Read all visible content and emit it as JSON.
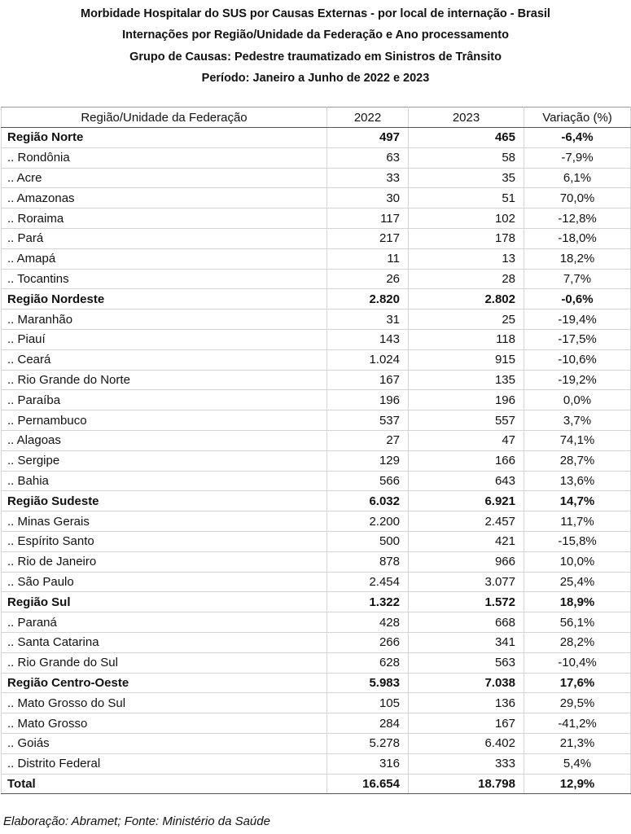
{
  "titles": [
    "Morbidade Hospitalar do SUS por Causas Externas - por local de internação - Brasil",
    "Internações por Região/Unidade da Federação e Ano processamento",
    "Grupo de Causas: Pedestre traumatizado em Sinistros de Trânsito",
    "Período: Janeiro a Junho de 2022 e 2023"
  ],
  "table": {
    "headers": [
      "Região/Unidade da Federação",
      "2022",
      "2023",
      "Variação (%)"
    ],
    "rows": [
      {
        "name": "Região Norte",
        "y2022": "497",
        "y2023": "465",
        "var": "-6,4%",
        "bold": true
      },
      {
        "name": ".. Rondônia",
        "y2022": "63",
        "y2023": "58",
        "var": "-7,9%"
      },
      {
        "name": ".. Acre",
        "y2022": "33",
        "y2023": "35",
        "var": "6,1%"
      },
      {
        "name": ".. Amazonas",
        "y2022": "30",
        "y2023": "51",
        "var": "70,0%"
      },
      {
        "name": ".. Roraima",
        "y2022": "117",
        "y2023": "102",
        "var": "-12,8%"
      },
      {
        "name": ".. Pará",
        "y2022": "217",
        "y2023": "178",
        "var": "-18,0%"
      },
      {
        "name": ".. Amapá",
        "y2022": "11",
        "y2023": "13",
        "var": "18,2%"
      },
      {
        "name": ".. Tocantins",
        "y2022": "26",
        "y2023": "28",
        "var": "7,7%"
      },
      {
        "name": "Região Nordeste",
        "y2022": "2.820",
        "y2023": "2.802",
        "var": "-0,6%",
        "bold": true
      },
      {
        "name": ".. Maranhão",
        "y2022": "31",
        "y2023": "25",
        "var": "-19,4%"
      },
      {
        "name": ".. Piauí",
        "y2022": "143",
        "y2023": "118",
        "var": "-17,5%"
      },
      {
        "name": ".. Ceará",
        "y2022": "1.024",
        "y2023": "915",
        "var": "-10,6%"
      },
      {
        "name": ".. Rio Grande do Norte",
        "y2022": "167",
        "y2023": "135",
        "var": "-19,2%"
      },
      {
        "name": ".. Paraíba",
        "y2022": "196",
        "y2023": "196",
        "var": "0,0%"
      },
      {
        "name": ".. Pernambuco",
        "y2022": "537",
        "y2023": "557",
        "var": "3,7%"
      },
      {
        "name": ".. Alagoas",
        "y2022": "27",
        "y2023": "47",
        "var": "74,1%"
      },
      {
        "name": ".. Sergipe",
        "y2022": "129",
        "y2023": "166",
        "var": "28,7%"
      },
      {
        "name": ".. Bahia",
        "y2022": "566",
        "y2023": "643",
        "var": "13,6%"
      },
      {
        "name": "Região Sudeste",
        "y2022": "6.032",
        "y2023": "6.921",
        "var": "14,7%",
        "bold": true
      },
      {
        "name": ".. Minas Gerais",
        "y2022": "2.200",
        "y2023": "2.457",
        "var": "11,7%"
      },
      {
        "name": ".. Espírito Santo",
        "y2022": "500",
        "y2023": "421",
        "var": "-15,8%"
      },
      {
        "name": ".. Rio de Janeiro",
        "y2022": "878",
        "y2023": "966",
        "var": "10,0%"
      },
      {
        "name": ".. São Paulo",
        "y2022": "2.454",
        "y2023": "3.077",
        "var": "25,4%"
      },
      {
        "name": "Região Sul",
        "y2022": "1.322",
        "y2023": "1.572",
        "var": "18,9%",
        "bold": true
      },
      {
        "name": ".. Paraná",
        "y2022": "428",
        "y2023": "668",
        "var": "56,1%"
      },
      {
        "name": ".. Santa Catarina",
        "y2022": "266",
        "y2023": "341",
        "var": "28,2%"
      },
      {
        "name": ".. Rio Grande do Sul",
        "y2022": "628",
        "y2023": "563",
        "var": "-10,4%"
      },
      {
        "name": "Região Centro-Oeste",
        "y2022": "5.983",
        "y2023": "7.038",
        "var": "17,6%",
        "bold": true
      },
      {
        "name": ".. Mato Grosso do Sul",
        "y2022": "105",
        "y2023": "136",
        "var": "29,5%"
      },
      {
        "name": ".. Mato Grosso",
        "y2022": "284",
        "y2023": "167",
        "var": "-41,2%"
      },
      {
        "name": ".. Goiás",
        "y2022": "5.278",
        "y2023": "6.402",
        "var": "21,3%"
      },
      {
        "name": ".. Distrito Federal",
        "y2022": "316",
        "y2023": "333",
        "var": "5,4%"
      },
      {
        "name": "Total",
        "y2022": "16.654",
        "y2023": "18.798",
        "var": "12,9%",
        "bold": true,
        "total": true
      }
    ]
  },
  "footer": "Elaboração: Abramet; Fonte: Ministério da Saúde"
}
